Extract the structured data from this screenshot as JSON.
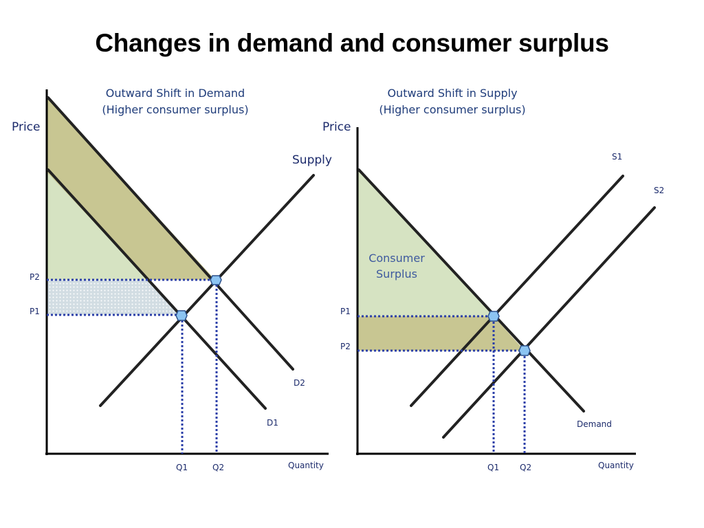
{
  "title": "Changes in demand and consumer surplus",
  "colors": {
    "surplus_dark": "#c8c692",
    "surplus_light": "#d6e3c2",
    "gain_band": "#cfdbe0",
    "guide": "#2b3fa8",
    "point": "#8cc4f2",
    "label": "#1b2a6b"
  },
  "left_diagram": {
    "title_line1": "Outward Shift in Demand",
    "title_line2": "(Higher consumer surplus)",
    "y_axis": "Price",
    "x_axis": "Quantity",
    "supply_label": "Supply",
    "d1_label": "D1",
    "d2_label": "D2",
    "p1": "P1",
    "p2": "P2",
    "q1": "Q1",
    "q2": "Q2"
  },
  "right_diagram": {
    "title_line1": "Outward Shift in Supply",
    "title_line2": "(Higher consumer surplus)",
    "y_axis": "Price",
    "x_axis": "Quantity",
    "s1_label": "S1",
    "s2_label": "S2",
    "demand_label": "Demand",
    "surplus_line1": "Consumer",
    "surplus_line2": "Surplus",
    "p1": "P1",
    "p2": "P2",
    "q1": "Q1",
    "q2": "Q2"
  }
}
